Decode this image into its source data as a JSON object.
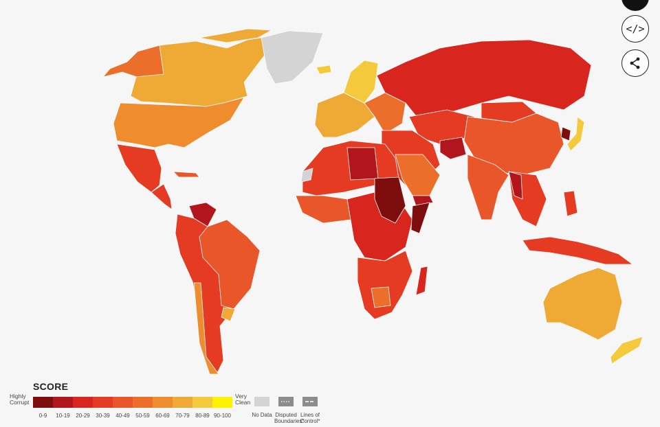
{
  "controls": {
    "embed_label": "</>",
    "share_icon": "share-icon"
  },
  "legend": {
    "title": "SCORE",
    "low_label_1": "Highly",
    "low_label_2": "Corrupt",
    "high_label_1": "Very",
    "high_label_2": "Clean",
    "bins": [
      "0-9",
      "10-19",
      "20-29",
      "30-39",
      "40-49",
      "50-59",
      "60-69",
      "70-79",
      "80-89",
      "90-100"
    ],
    "colors": [
      "#7e0d0e",
      "#b2151c",
      "#d8261f",
      "#e53b22",
      "#e9562a",
      "#ec6e2b",
      "#ee8c2e",
      "#efaa36",
      "#f4c93c",
      "#fff200"
    ],
    "no_data_label": "No Data",
    "disputed_label_1": "Disputed",
    "disputed_label_2": "Boundaries*",
    "lines_label_1": "Lines of",
    "lines_label_2": "Control*",
    "no_data_color": "#d4d4d4",
    "boundary_color": "#8c8c8c"
  },
  "map": {
    "ocean_color": "#f6f6f6",
    "border_color": "#ffffff"
  }
}
